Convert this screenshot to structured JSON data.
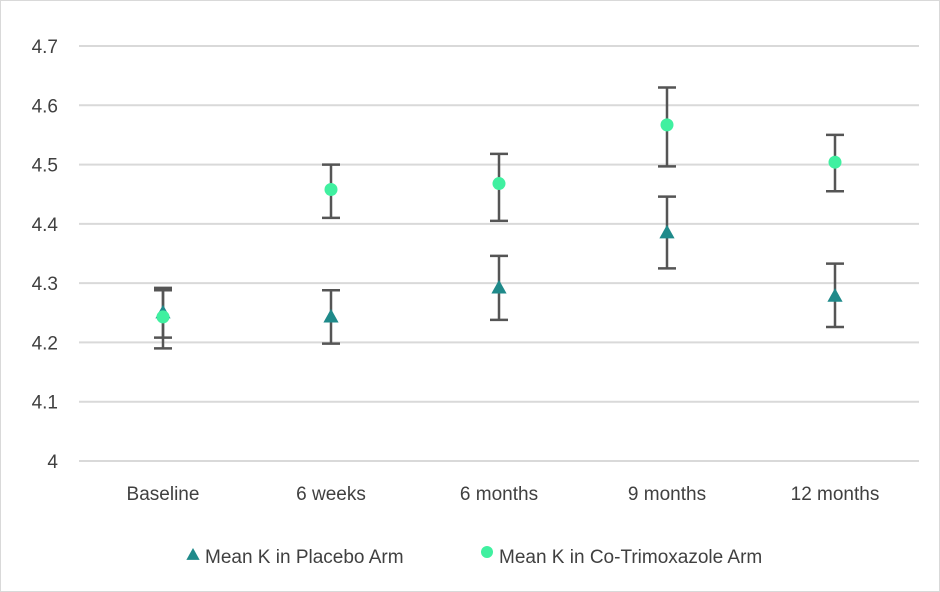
{
  "chart_data": {
    "type": "scatter",
    "categories": [
      "Baseline",
      "6 weeks",
      "6 months",
      "9 months",
      "12 months"
    ],
    "yticks": [
      "4",
      "4.1",
      "4.2",
      "4.3",
      "4.4",
      "4.5",
      "4.6",
      "4.7"
    ],
    "ylim": [
      4,
      4.7
    ],
    "grid": true,
    "legend_position": "bottom",
    "error_bars": true,
    "series": [
      {
        "name": "Mean K in Placebo Arm",
        "marker": "triangle",
        "color": "#1f8a8a",
        "values": [
          4.25,
          4.243,
          4.292,
          4.385,
          4.278
        ],
        "error_low": [
          4.208,
          4.198,
          4.238,
          4.325,
          4.226
        ],
        "error_high": [
          4.292,
          4.288,
          4.346,
          4.446,
          4.333
        ]
      },
      {
        "name": "Mean K in Co-Trimoxazole Arm",
        "marker": "circle",
        "color": "#40f0a0",
        "values": [
          4.243,
          4.458,
          4.468,
          4.567,
          4.504
        ],
        "error_low": [
          4.19,
          4.41,
          4.405,
          4.497,
          4.455
        ],
        "error_high": [
          4.288,
          4.5,
          4.518,
          4.63,
          4.55
        ]
      }
    ],
    "error_bar_color": "#555555",
    "gridline_color": "#d9d9d9",
    "text_color": "#404040"
  }
}
